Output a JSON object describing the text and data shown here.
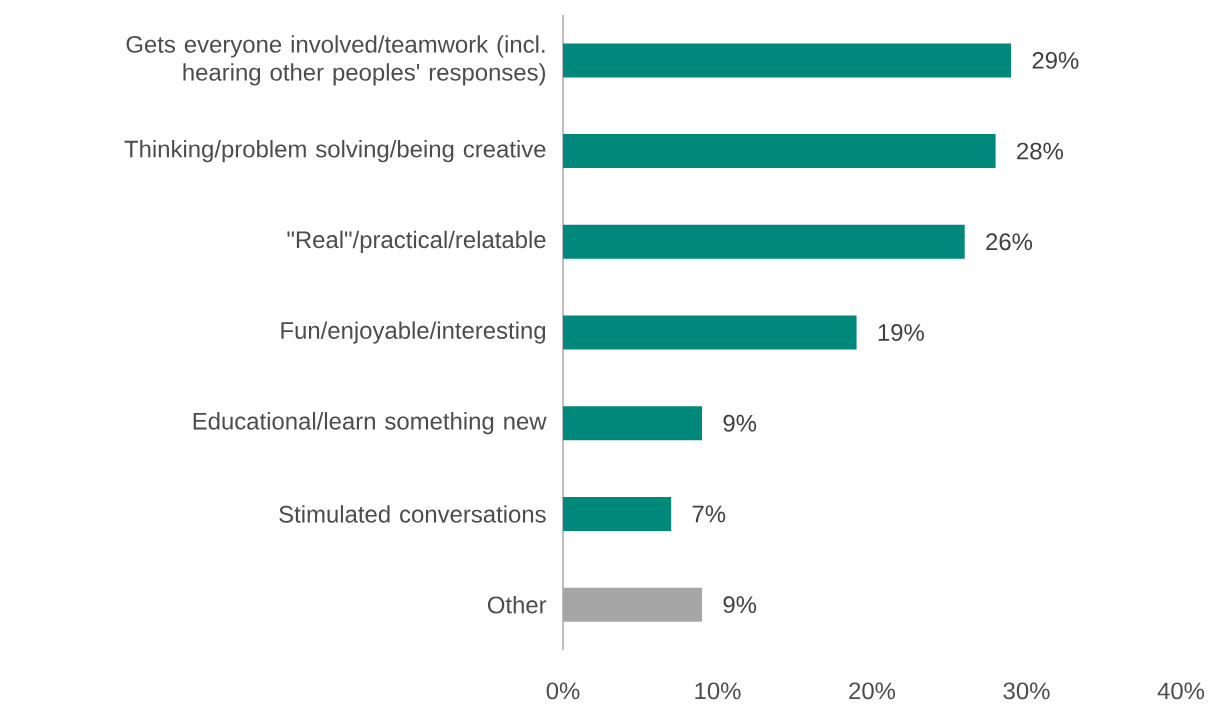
{
  "chart_data": {
    "type": "bar",
    "orientation": "horizontal",
    "categories": [
      "Gets everyone involved/teamwork (incl. hearing other peoples' responses)",
      "Thinking/problem solving/being creative",
      "\"Real\"/practical/relatable",
      "Fun/enjoyable/interesting",
      "Educational/learn something new",
      "Stimulated conversations",
      "Other"
    ],
    "values": [
      29,
      28,
      26,
      19,
      9,
      7,
      9
    ],
    "colors": [
      "#00897b",
      "#00897b",
      "#00897b",
      "#00897b",
      "#00897b",
      "#00897b",
      "#a6a6a6"
    ],
    "value_labels": [
      "29%",
      "28%",
      "26%",
      "19%",
      "9%",
      "7%",
      "9%"
    ],
    "xlim": [
      0,
      40
    ],
    "xticks": [
      {
        "value": 0,
        "label": "0%"
      },
      {
        "value": 10,
        "label": "10%"
      },
      {
        "value": 20,
        "label": "20%"
      },
      {
        "value": 30,
        "label": "30%"
      },
      {
        "value": 40,
        "label": "40%"
      }
    ]
  }
}
